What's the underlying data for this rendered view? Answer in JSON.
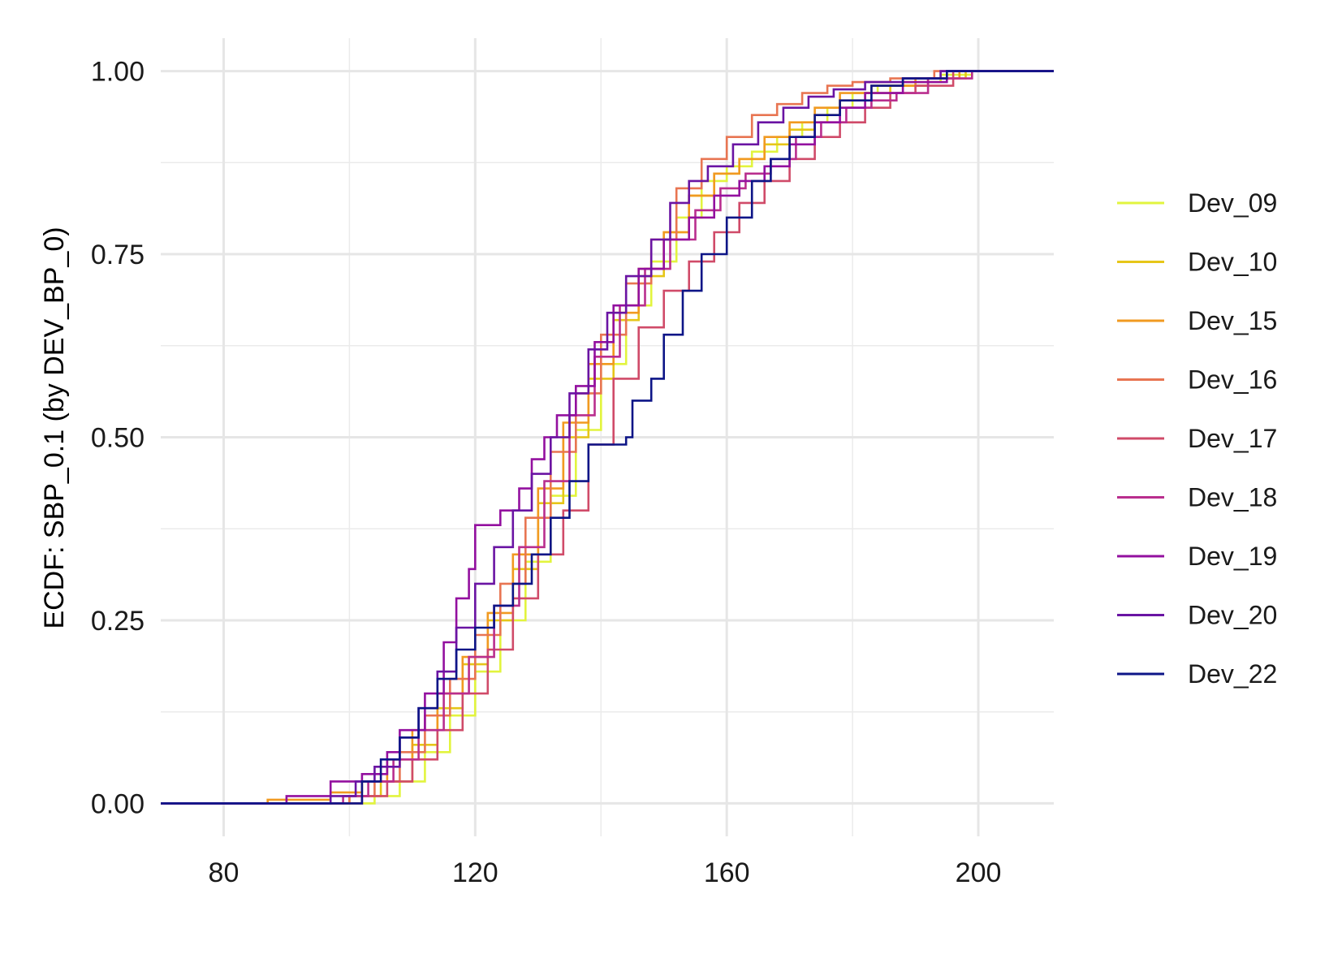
{
  "chart_data": {
    "type": "line",
    "subtype": "ecdf-step",
    "title": "",
    "xlabel": "",
    "ylabel": "ECDF: SBP_0.1 (by DEV_BP_0)",
    "xlim": [
      70,
      212
    ],
    "ylim": [
      -0.045,
      1.045
    ],
    "x_ticks": [
      80,
      120,
      160,
      200
    ],
    "x_tick_labels": [
      "80",
      "120",
      "160",
      "200"
    ],
    "y_ticks": [
      0,
      0.25,
      0.5,
      0.75,
      1
    ],
    "y_tick_labels": [
      "0.00",
      "0.25",
      "0.50",
      "0.75",
      "1.00"
    ],
    "grid": true,
    "legend_position": "right",
    "series": [
      {
        "name": "Dev_09",
        "color": "#E2F43E",
        "points": [
          [
            70,
            0
          ],
          [
            99,
            0
          ],
          [
            104,
            0.01
          ],
          [
            108,
            0.03
          ],
          [
            112,
            0.07
          ],
          [
            116,
            0.12
          ],
          [
            120,
            0.18
          ],
          [
            124,
            0.25
          ],
          [
            128,
            0.33
          ],
          [
            132,
            0.42
          ],
          [
            136,
            0.51
          ],
          [
            140,
            0.6
          ],
          [
            144,
            0.68
          ],
          [
            148,
            0.74
          ],
          [
            152,
            0.8
          ],
          [
            156,
            0.85
          ],
          [
            160,
            0.87
          ],
          [
            164,
            0.89
          ],
          [
            168,
            0.91
          ],
          [
            172,
            0.93
          ],
          [
            176,
            0.95
          ],
          [
            180,
            0.97
          ],
          [
            184,
            0.98
          ],
          [
            188,
            0.985
          ],
          [
            194,
            0.995
          ],
          [
            199,
            1
          ],
          [
            212,
            1
          ]
        ]
      },
      {
        "name": "Dev_10",
        "color": "#E6C619",
        "points": [
          [
            70,
            0
          ],
          [
            94,
            0
          ],
          [
            100,
            0.01
          ],
          [
            105,
            0.03
          ],
          [
            110,
            0.08
          ],
          [
            114,
            0.13
          ],
          [
            118,
            0.19
          ],
          [
            122,
            0.25
          ],
          [
            126,
            0.32
          ],
          [
            130,
            0.41
          ],
          [
            134,
            0.5
          ],
          [
            138,
            0.58
          ],
          [
            142,
            0.66
          ],
          [
            146,
            0.72
          ],
          [
            150,
            0.78
          ],
          [
            154,
            0.83
          ],
          [
            158,
            0.86
          ],
          [
            162,
            0.88
          ],
          [
            166,
            0.9
          ],
          [
            170,
            0.92
          ],
          [
            174,
            0.94
          ],
          [
            178,
            0.96
          ],
          [
            182,
            0.97
          ],
          [
            186,
            0.98
          ],
          [
            192,
            0.99
          ],
          [
            198,
            1
          ],
          [
            212,
            1
          ]
        ]
      },
      {
        "name": "Dev_15",
        "color": "#F19A21",
        "points": [
          [
            70,
            0
          ],
          [
            83,
            0
          ],
          [
            87,
            0.005
          ],
          [
            97,
            0.015
          ],
          [
            102,
            0.03
          ],
          [
            106,
            0.06
          ],
          [
            110,
            0.1
          ],
          [
            114,
            0.15
          ],
          [
            118,
            0.2
          ],
          [
            122,
            0.26
          ],
          [
            126,
            0.34
          ],
          [
            130,
            0.43
          ],
          [
            134,
            0.52
          ],
          [
            138,
            0.6
          ],
          [
            142,
            0.67
          ],
          [
            146,
            0.73
          ],
          [
            150,
            0.78
          ],
          [
            154,
            0.83
          ],
          [
            158,
            0.86
          ],
          [
            162,
            0.88
          ],
          [
            166,
            0.91
          ],
          [
            170,
            0.93
          ],
          [
            174,
            0.95
          ],
          [
            178,
            0.97
          ],
          [
            183,
            0.98
          ],
          [
            190,
            0.99
          ],
          [
            197,
            1
          ],
          [
            212,
            1
          ]
        ]
      },
      {
        "name": "Dev_16",
        "color": "#E87552",
        "points": [
          [
            70,
            0
          ],
          [
            96,
            0
          ],
          [
            100,
            0.01
          ],
          [
            104,
            0.03
          ],
          [
            108,
            0.07
          ],
          [
            112,
            0.12
          ],
          [
            116,
            0.17
          ],
          [
            120,
            0.23
          ],
          [
            124,
            0.3
          ],
          [
            128,
            0.39
          ],
          [
            132,
            0.48
          ],
          [
            136,
            0.56
          ],
          [
            140,
            0.64
          ],
          [
            144,
            0.71
          ],
          [
            148,
            0.77
          ],
          [
            152,
            0.84
          ],
          [
            156,
            0.88
          ],
          [
            160,
            0.91
          ],
          [
            164,
            0.94
          ],
          [
            168,
            0.955
          ],
          [
            172,
            0.97
          ],
          [
            176,
            0.98
          ],
          [
            180,
            0.985
          ],
          [
            186,
            0.99
          ],
          [
            193,
            1
          ],
          [
            212,
            1
          ]
        ]
      },
      {
        "name": "Dev_17",
        "color": "#D04B69",
        "points": [
          [
            70,
            0
          ],
          [
            99,
            0
          ],
          [
            102,
            0.01
          ],
          [
            106,
            0.03
          ],
          [
            110,
            0.06
          ],
          [
            114,
            0.1
          ],
          [
            118,
            0.15
          ],
          [
            122,
            0.21
          ],
          [
            126,
            0.28
          ],
          [
            130,
            0.34
          ],
          [
            134,
            0.4
          ],
          [
            138,
            0.49
          ],
          [
            142,
            0.58
          ],
          [
            146,
            0.65
          ],
          [
            150,
            0.7
          ],
          [
            154,
            0.74
          ],
          [
            158,
            0.78
          ],
          [
            162,
            0.82
          ],
          [
            166,
            0.85
          ],
          [
            170,
            0.88
          ],
          [
            174,
            0.91
          ],
          [
            178,
            0.93
          ],
          [
            182,
            0.95
          ],
          [
            186,
            0.97
          ],
          [
            190,
            0.98
          ],
          [
            196,
            1
          ],
          [
            212,
            1
          ]
        ]
      },
      {
        "name": "Dev_18",
        "color": "#B92E8E",
        "points": [
          [
            70,
            0
          ],
          [
            95,
            0
          ],
          [
            99,
            0.01
          ],
          [
            103,
            0.03
          ],
          [
            107,
            0.06
          ],
          [
            111,
            0.1
          ],
          [
            115,
            0.15
          ],
          [
            119,
            0.2
          ],
          [
            123,
            0.27
          ],
          [
            127,
            0.35
          ],
          [
            131,
            0.44
          ],
          [
            135,
            0.53
          ],
          [
            139,
            0.61
          ],
          [
            143,
            0.68
          ],
          [
            147,
            0.73
          ],
          [
            151,
            0.77
          ],
          [
            155,
            0.81
          ],
          [
            159,
            0.84
          ],
          [
            163,
            0.86
          ],
          [
            167,
            0.88
          ],
          [
            171,
            0.91
          ],
          [
            175,
            0.93
          ],
          [
            179,
            0.95
          ],
          [
            183,
            0.96
          ],
          [
            187,
            0.97
          ],
          [
            192,
            0.99
          ],
          [
            199,
            1
          ],
          [
            212,
            1
          ]
        ]
      },
      {
        "name": "Dev_19",
        "color": "#93109F",
        "points": [
          [
            70,
            0
          ],
          [
            88,
            0
          ],
          [
            90,
            0.01
          ],
          [
            97,
            0.03
          ],
          [
            102,
            0.04
          ],
          [
            106,
            0.07
          ],
          [
            108,
            0.1
          ],
          [
            112,
            0.15
          ],
          [
            115,
            0.22
          ],
          [
            117,
            0.28
          ],
          [
            119,
            0.32
          ],
          [
            120,
            0.38
          ],
          [
            124,
            0.4
          ],
          [
            127,
            0.43
          ],
          [
            129,
            0.47
          ],
          [
            131,
            0.5
          ],
          [
            133,
            0.53
          ],
          [
            136,
            0.57
          ],
          [
            139,
            0.63
          ],
          [
            142,
            0.68
          ],
          [
            146,
            0.73
          ],
          [
            150,
            0.77
          ],
          [
            154,
            0.8
          ],
          [
            158,
            0.83
          ],
          [
            162,
            0.85
          ],
          [
            166,
            0.87
          ],
          [
            170,
            0.9
          ],
          [
            174,
            0.93
          ],
          [
            178,
            0.95
          ],
          [
            182,
            0.97
          ],
          [
            188,
            0.985
          ],
          [
            195,
            1
          ],
          [
            212,
            1
          ]
        ]
      },
      {
        "name": "Dev_20",
        "color": "#6A14A3",
        "points": [
          [
            70,
            0
          ],
          [
            93,
            0
          ],
          [
            97,
            0.01
          ],
          [
            101,
            0.03
          ],
          [
            104,
            0.05
          ],
          [
            108,
            0.09
          ],
          [
            111,
            0.13
          ],
          [
            114,
            0.18
          ],
          [
            117,
            0.24
          ],
          [
            120,
            0.3
          ],
          [
            123,
            0.35
          ],
          [
            126,
            0.4
          ],
          [
            129,
            0.45
          ],
          [
            132,
            0.5
          ],
          [
            135,
            0.56
          ],
          [
            138,
            0.62
          ],
          [
            141,
            0.67
          ],
          [
            144,
            0.72
          ],
          [
            148,
            0.77
          ],
          [
            151,
            0.82
          ],
          [
            154,
            0.85
          ],
          [
            157,
            0.87
          ],
          [
            161,
            0.9
          ],
          [
            165,
            0.93
          ],
          [
            169,
            0.95
          ],
          [
            173,
            0.965
          ],
          [
            177,
            0.975
          ],
          [
            182,
            0.985
          ],
          [
            188,
            0.99
          ],
          [
            194,
            1
          ],
          [
            212,
            1
          ]
        ]
      },
      {
        "name": "Dev_22",
        "color": "#0D1587",
        "points": [
          [
            70,
            0
          ],
          [
            101,
            0
          ],
          [
            102,
            0.03
          ],
          [
            105,
            0.06
          ],
          [
            108,
            0.09
          ],
          [
            111,
            0.13
          ],
          [
            114,
            0.17
          ],
          [
            117,
            0.21
          ],
          [
            120,
            0.24
          ],
          [
            123,
            0.27
          ],
          [
            126,
            0.3
          ],
          [
            129,
            0.34
          ],
          [
            132,
            0.39
          ],
          [
            135,
            0.44
          ],
          [
            138,
            0.49
          ],
          [
            144,
            0.5
          ],
          [
            145,
            0.55
          ],
          [
            148,
            0.58
          ],
          [
            150,
            0.64
          ],
          [
            153,
            0.7
          ],
          [
            156,
            0.75
          ],
          [
            160,
            0.8
          ],
          [
            164,
            0.85
          ],
          [
            167,
            0.88
          ],
          [
            170,
            0.91
          ],
          [
            174,
            0.94
          ],
          [
            178,
            0.96
          ],
          [
            183,
            0.98
          ],
          [
            188,
            0.99
          ],
          [
            195,
            1
          ],
          [
            212,
            1
          ]
        ]
      }
    ]
  }
}
